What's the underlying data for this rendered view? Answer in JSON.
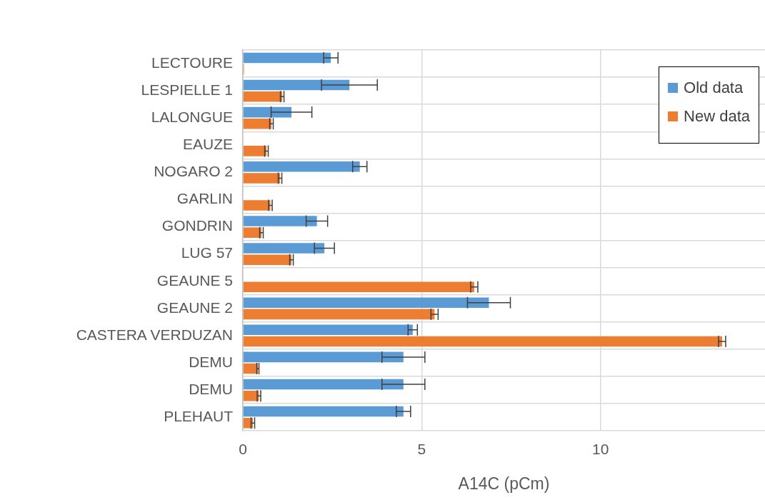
{
  "chart_data": {
    "type": "bar",
    "orientation": "horizontal",
    "xlabel": "A14C (pCm)",
    "categories": [
      "LECTOURE",
      "LESPIELLE 1",
      "LALONGUE",
      "EAUZE",
      "NOGARO 2",
      "GARLIN",
      "GONDRIN",
      "LUG 57",
      "GEAUNE 5",
      "GEAUNE 2",
      "CASTERA VERDUZAN",
      "DEMU",
      "DEMU",
      "PLEHAUT"
    ],
    "series": [
      {
        "name": "Old data",
        "color": "#5b9bd5",
        "values": [
          2.46,
          2.98,
          1.36,
          null,
          3.27,
          null,
          2.07,
          2.28,
          null,
          6.88,
          4.75,
          4.49,
          4.49,
          4.49
        ],
        "errors": [
          0.2,
          0.78,
          0.57,
          null,
          0.2,
          null,
          0.3,
          0.28,
          null,
          0.6,
          0.13,
          0.6,
          0.6,
          0.2
        ]
      },
      {
        "name": "New data",
        "color": "#ed7d31",
        "values": [
          0.03,
          1.1,
          0.8,
          0.66,
          1.04,
          0.77,
          0.52,
          1.36,
          6.47,
          5.36,
          13.4,
          0.42,
          0.45,
          0.28
        ],
        "errors": [
          null,
          0.05,
          0.05,
          0.05,
          0.05,
          0.05,
          0.05,
          0.05,
          0.1,
          0.1,
          0.1,
          0.03,
          0.05,
          0.05
        ]
      }
    ],
    "xlim": [
      0,
      14.6
    ],
    "xticks": [
      0,
      5,
      10
    ],
    "grid": true,
    "legend": "top right"
  }
}
